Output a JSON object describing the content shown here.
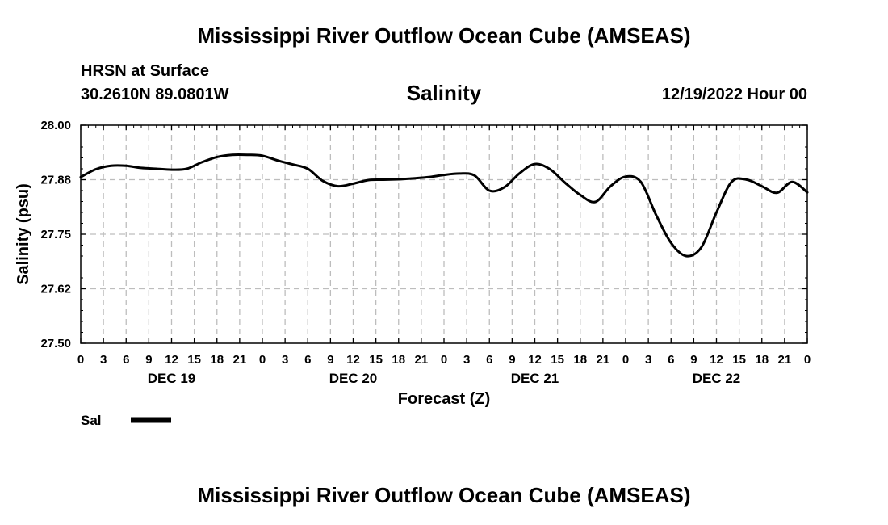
{
  "header": {
    "title": "Mississippi River Outflow Ocean Cube (AMSEAS)",
    "station": "HRSN at Surface",
    "coords": "30.2610N  89.0801W",
    "run_time": "12/19/2022 Hour 00"
  },
  "footer": {
    "title": "Mississippi River Outflow Ocean Cube (AMSEAS)"
  },
  "chart_data": {
    "type": "line",
    "title": "Salinity",
    "xlabel": "Forecast (Z)",
    "ylabel": "Salinity (psu)",
    "ylim": [
      27.5,
      28.0
    ],
    "yticks": [
      "27.50",
      "27.62",
      "27.75",
      "27.88",
      "28.00"
    ],
    "xlim_hours": [
      0,
      96
    ],
    "xtick_labels": [
      "0",
      "3",
      "6",
      "9",
      "12",
      "15",
      "18",
      "21",
      "0",
      "3",
      "6",
      "9",
      "12",
      "15",
      "18",
      "21",
      "0",
      "3",
      "6",
      "9",
      "12",
      "15",
      "18",
      "21",
      "0",
      "3",
      "6",
      "9",
      "12",
      "15",
      "18",
      "21",
      "0"
    ],
    "date_labels": [
      {
        "label": "DEC 19",
        "hour": 12
      },
      {
        "label": "DEC 20",
        "hour": 36
      },
      {
        "label": "DEC 21",
        "hour": 60
      },
      {
        "label": "DEC 22",
        "hour": 84
      }
    ],
    "grid": true,
    "legend": [
      {
        "label": "Sal",
        "color": "#000000"
      }
    ],
    "series": [
      {
        "name": "Sal",
        "color": "#000000",
        "x": [
          0,
          2,
          4,
          6,
          8,
          10,
          12,
          14,
          16,
          18,
          20,
          22,
          24,
          26,
          28,
          30,
          32,
          34,
          36,
          38,
          40,
          42,
          44,
          46,
          48,
          50,
          52,
          54,
          56,
          58,
          60,
          62,
          64,
          66,
          68,
          70,
          72,
          74,
          76,
          78,
          80,
          82,
          84,
          86,
          88,
          90,
          92,
          94,
          96
        ],
        "values": [
          27.881,
          27.899,
          27.907,
          27.907,
          27.902,
          27.9,
          27.898,
          27.9,
          27.915,
          27.927,
          27.932,
          27.932,
          27.93,
          27.919,
          27.91,
          27.9,
          27.872,
          27.86,
          27.866,
          27.874,
          27.875,
          27.876,
          27.878,
          27.881,
          27.886,
          27.889,
          27.885,
          27.85,
          27.858,
          27.89,
          27.911,
          27.899,
          27.868,
          27.84,
          27.824,
          27.86,
          27.882,
          27.87,
          27.795,
          27.73,
          27.7,
          27.72,
          27.8,
          27.87,
          27.875,
          27.86,
          27.845,
          27.87,
          27.846
        ]
      }
    ]
  }
}
